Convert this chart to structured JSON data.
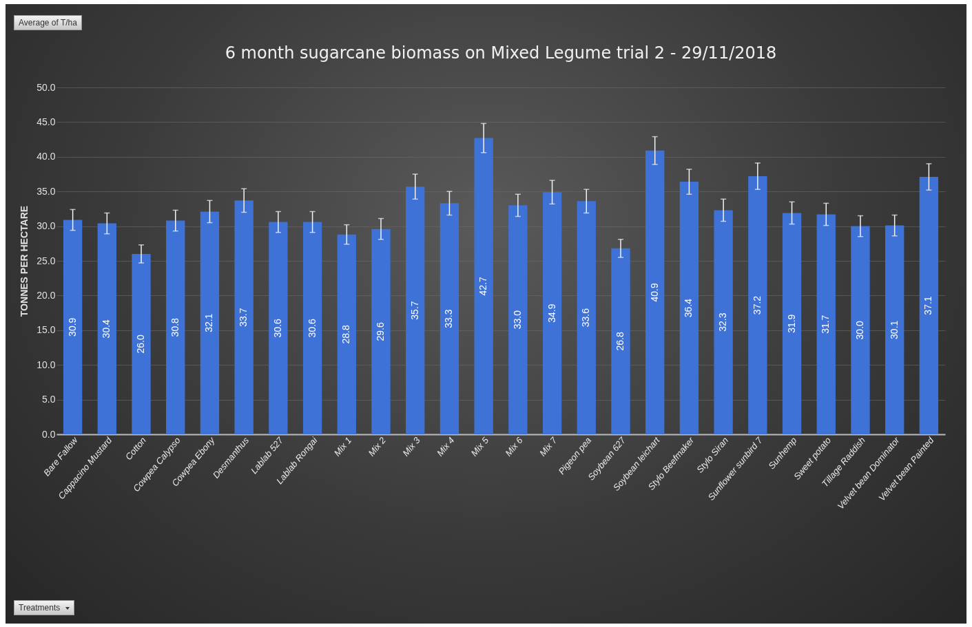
{
  "chart_data": {
    "type": "bar",
    "title": "6 month sugarcane biomass on Mixed Legume trial 2 - 29/11/2018",
    "ylabel": "TONNES PER HECTARE",
    "categories": [
      "Bare Fallow",
      "Cappacino Mustard",
      "Cotton",
      "Cowpea Calypso",
      "Cowpea Ebony",
      "Desmanthus",
      "Lablab 527",
      "Lablab Rongai",
      "Mix 1",
      "Mix 2",
      "Mix 3",
      "Mix 4",
      "Mix 5",
      "Mix 6",
      "Mix 7",
      "Pigeon pea",
      "Soybean 627",
      "Soybean leichart",
      "Stylo Beefmaker",
      "Stylo Siran",
      "Sunflower sunbird 7",
      "Sunhemp",
      "Sweet potato",
      "Tillage Raddish",
      "Velvet bean Dominator",
      "Velvet bean Painted"
    ],
    "values": [
      30.9,
      30.4,
      26.0,
      30.8,
      32.1,
      33.7,
      30.6,
      30.6,
      28.8,
      29.6,
      35.7,
      33.3,
      42.7,
      33.0,
      34.9,
      33.6,
      26.8,
      40.9,
      36.4,
      32.3,
      37.2,
      31.9,
      31.7,
      30.0,
      30.1,
      37.1
    ],
    "errors": [
      1.5,
      1.5,
      1.3,
      1.5,
      1.6,
      1.7,
      1.5,
      1.5,
      1.4,
      1.5,
      1.8,
      1.7,
      2.1,
      1.6,
      1.7,
      1.7,
      1.3,
      2.0,
      1.8,
      1.6,
      1.9,
      1.6,
      1.6,
      1.5,
      1.5,
      1.9
    ],
    "value_labels": [
      "30.9",
      "30.4",
      "26.0",
      "30.8",
      "32.1",
      "33.7",
      "30.6",
      "30.6",
      "28.8",
      "29.6",
      "35.7",
      "33.3",
      "42.7",
      "33.0",
      "34.9",
      "33.6",
      "26.8",
      "40.9",
      "36.4",
      "32.3",
      "37.2",
      "31.9",
      "31.7",
      "30.0",
      "30.1",
      "37.1"
    ],
    "color": "#3f72d6",
    "grid": "y",
    "ylim": [
      0,
      50
    ],
    "yticks": [
      {
        "value": 0,
        "label": "0.0"
      },
      {
        "value": 5,
        "label": "5.0"
      },
      {
        "value": 10,
        "label": "10.0"
      },
      {
        "value": 15,
        "label": "15.0"
      },
      {
        "value": 20,
        "label": "20.0"
      },
      {
        "value": 25,
        "label": "25.0"
      },
      {
        "value": 30,
        "label": "30.0"
      },
      {
        "value": 35,
        "label": "35.0"
      },
      {
        "value": 40,
        "label": "40.0"
      },
      {
        "value": 45,
        "label": "45.0"
      },
      {
        "value": 50,
        "label": "50.0"
      }
    ],
    "annotations": [
      "Average of T/ha",
      "Treatments"
    ]
  }
}
